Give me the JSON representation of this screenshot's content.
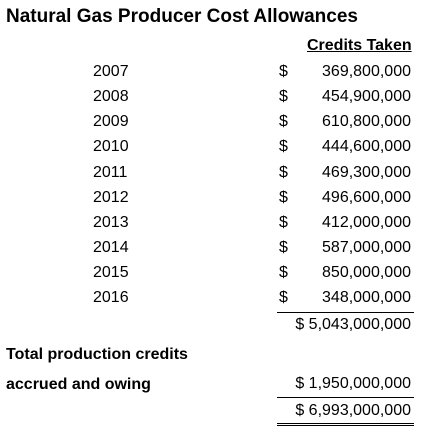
{
  "title": "Natural Gas Producer Cost Allowances",
  "column_header": "Credits Taken",
  "currency_symbol": "$",
  "rows": [
    {
      "year": "2007",
      "amount": "369,800,000"
    },
    {
      "year": "2008",
      "amount": "454,900,000"
    },
    {
      "year": "2009",
      "amount": "610,800,000"
    },
    {
      "year": "2010",
      "amount": "444,600,000"
    },
    {
      "year": "2011",
      "amount": "469,300,000"
    },
    {
      "year": "2012",
      "amount": "496,600,000"
    },
    {
      "year": "2013",
      "amount": "412,000,000"
    },
    {
      "year": "2014",
      "amount": "587,000,000"
    },
    {
      "year": "2015",
      "amount": "850,000,000"
    },
    {
      "year": "2016",
      "amount": "348,000,000"
    }
  ],
  "subtotal": "$ 5,043,000,000",
  "production_label_line1": "Total production credits",
  "production_label_line2": "accrued and owing",
  "production_amount": "$ 1,950,000,000",
  "grand_total": "$ 6,993,000,000"
}
